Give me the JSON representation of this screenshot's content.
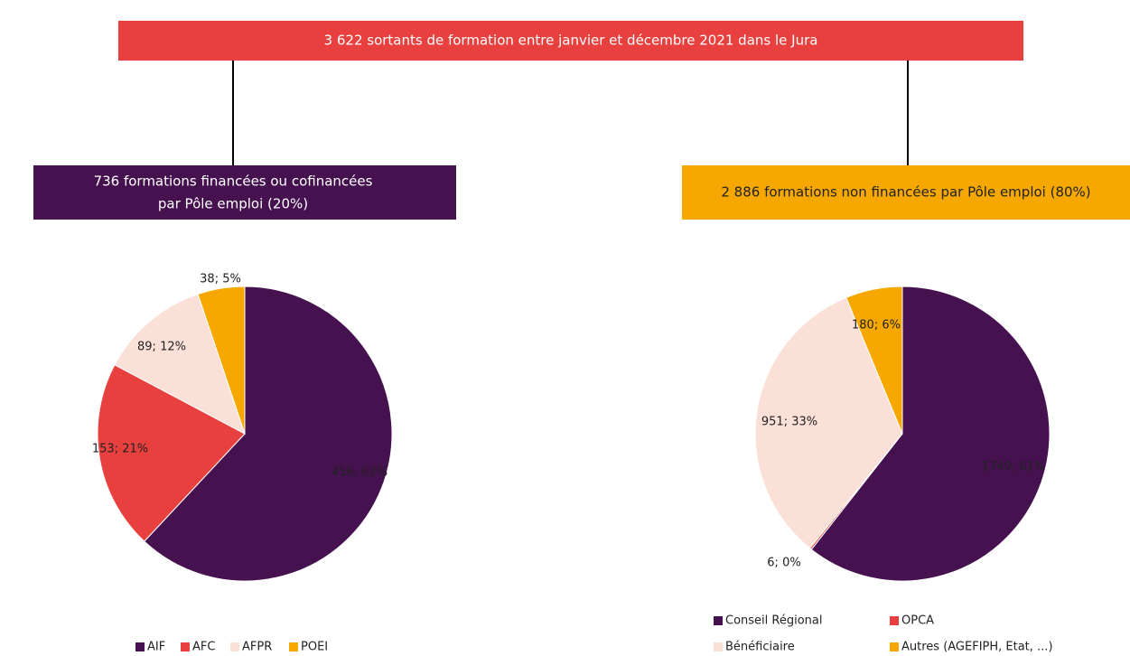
{
  "header": "3 622 sortants de formation entre janvier et décembre 2021 dans le Jura",
  "left_box": {
    "lines": [
      "736 formations financées ou cofinancées",
      "par Pôle emploi (20%)"
    ]
  },
  "right_box": {
    "lines": [
      "2 886 formations non financées par Pôle emploi (80%)"
    ]
  },
  "chart_data": [
    {
      "type": "pie",
      "categories": [
        "AIF",
        "AFC",
        "AFPR",
        "POEI"
      ],
      "values": [
        456,
        153,
        89,
        38
      ],
      "value_labels": [
        "456; 62%",
        "153; 21%",
        "89; 12%",
        "38; 5%"
      ],
      "colors": [
        "#45114f",
        "#e8403f",
        "#fbe0d8",
        "#f6a800"
      ]
    },
    {
      "type": "pie",
      "categories": [
        "Conseil Régional",
        "OPCA",
        "Bénéficiaire",
        "Autres (AGEFIPH, Etat, ...)"
      ],
      "values": [
        1749,
        6,
        951,
        180
      ],
      "value_labels": [
        "1749; 61%",
        "6; 0%",
        "951; 33%",
        "180; 6%"
      ],
      "colors": [
        "#45114f",
        "#e8403f",
        "#fbe0d8",
        "#f6a800"
      ]
    }
  ]
}
